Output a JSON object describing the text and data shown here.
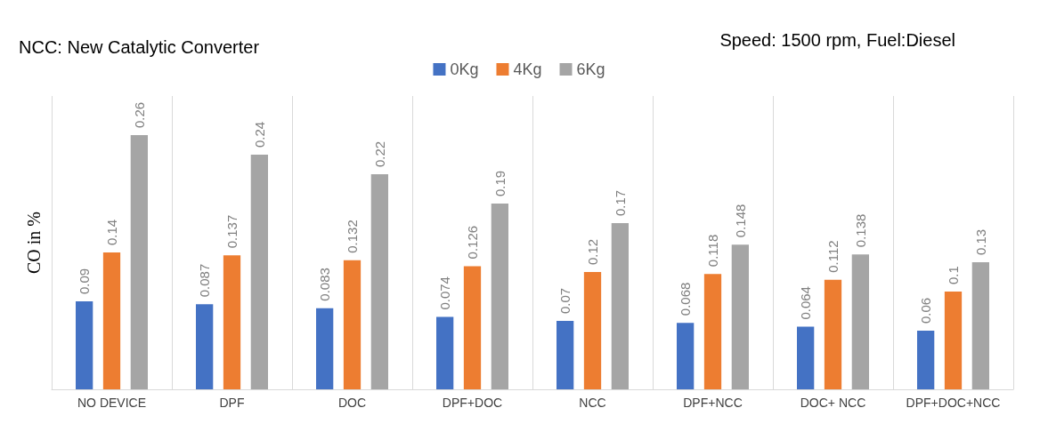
{
  "chart_data": {
    "type": "bar",
    "title": "NCC: New Catalytic Converter",
    "subtitle": "Speed: 1500 rpm, Fuel:Diesel",
    "ylabel": "CO in %",
    "categories": [
      "NO DEVICE",
      "DPF",
      "DOC",
      "DPF+DOC",
      "NCC",
      "DPF+NCC",
      "DOC+ NCC",
      "DPF+DOC+NCC"
    ],
    "series": [
      {
        "name": "0Kg",
        "color": "#4472c4",
        "values": [
          0.09,
          0.087,
          0.083,
          0.074,
          0.07,
          0.068,
          0.064,
          0.06
        ]
      },
      {
        "name": "4Kg",
        "color": "#ed7d31",
        "values": [
          0.14,
          0.137,
          0.132,
          0.126,
          0.12,
          0.118,
          0.112,
          0.1
        ]
      },
      {
        "name": "6Kg",
        "color": "#a5a5a5",
        "values": [
          0.26,
          0.24,
          0.22,
          0.19,
          0.17,
          0.148,
          0.138,
          0.13
        ]
      }
    ],
    "data_labels": true,
    "legend": "top",
    "grid": "x"
  }
}
